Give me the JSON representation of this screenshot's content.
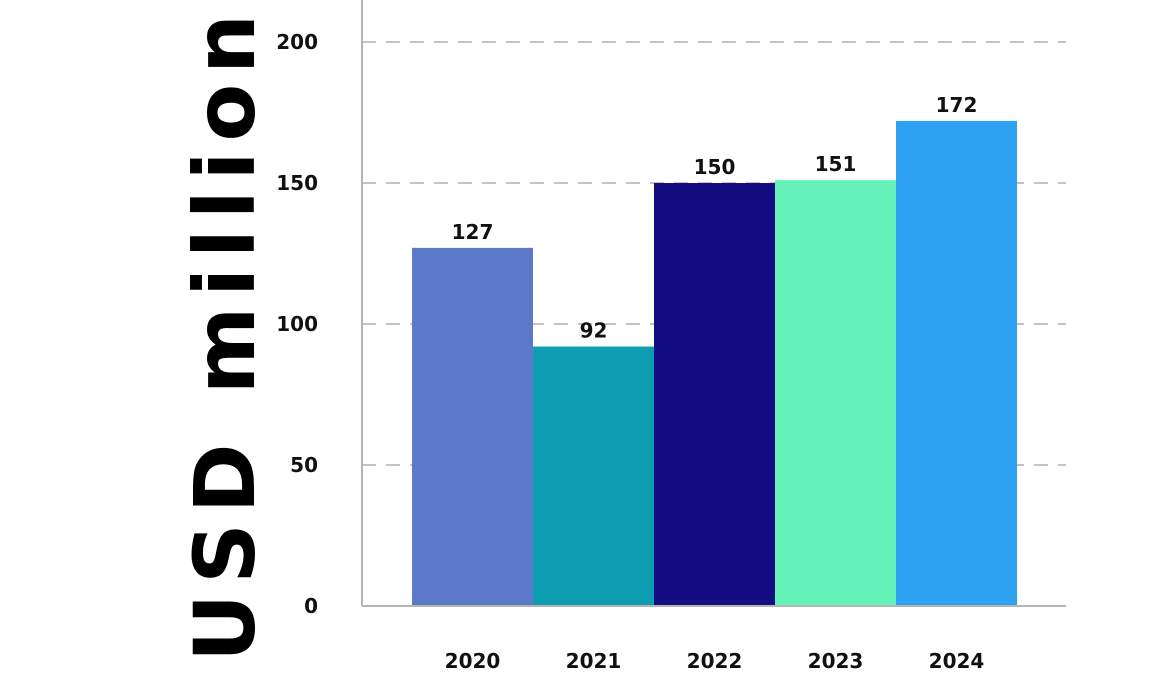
{
  "chart_data": {
    "type": "bar",
    "categories": [
      "2020",
      "2021",
      "2022",
      "2023",
      "2024"
    ],
    "values": [
      127,
      92,
      150,
      151,
      172
    ],
    "value_labels": [
      "127",
      "92",
      "150",
      "151",
      "172"
    ],
    "colors": [
      "#5b79c8",
      "#0e9db0",
      "#140d82",
      "#64f2b9",
      "#2ea2f2"
    ],
    "ylabel": "USD million",
    "yticks": [
      0,
      50,
      100,
      150,
      200
    ],
    "ytick_labels": [
      "0",
      "50",
      "100",
      "150",
      "200"
    ],
    "ylim": [
      0,
      200
    ],
    "grid": "horizontal-dashed",
    "legend": "none"
  }
}
